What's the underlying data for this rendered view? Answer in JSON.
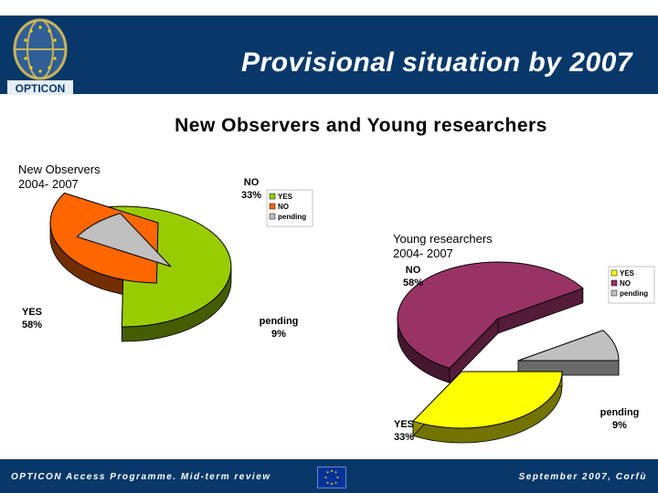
{
  "header": {
    "logo_text": "OPTICON",
    "title": "Provisional situation by 2007"
  },
  "subtitle": "New Observers and Young researchers",
  "footer": {
    "left": "OPTICON Access Programme. Mid-term review",
    "right": "September 2007, Corfù"
  },
  "colors": {
    "header_bg": "#08386a",
    "yes_green": "#99cc00",
    "no_orange": "#ff6600",
    "pending_grey": "#c0c0c0",
    "yes_yellow": "#ffff00",
    "no_purple": "#993366"
  },
  "chart_data": [
    {
      "type": "pie",
      "title": "New Observers\n2004- 2007",
      "legend_position": "top-right",
      "slices": [
        {
          "label": "YES",
          "value": 58,
          "value_text": "58%",
          "color": "#99cc00"
        },
        {
          "label": "NO",
          "value": 33,
          "value_text": "33%",
          "color": "#ff6600"
        },
        {
          "label": "pending",
          "value": 9,
          "value_text": "9%",
          "color": "#c0c0c0"
        }
      ],
      "legend": [
        "YES",
        "NO",
        "pending"
      ]
    },
    {
      "type": "pie",
      "title": "Young researchers\n2004- 2007",
      "legend_position": "top-right",
      "slices": [
        {
          "label": "YES",
          "value": 33,
          "value_text": "33%",
          "color": "#ffff00"
        },
        {
          "label": "NO",
          "value": 58,
          "value_text": "58%",
          "color": "#993366"
        },
        {
          "label": "pending",
          "value": 9,
          "value_text": "9%",
          "color": "#c0c0c0"
        }
      ],
      "legend": [
        "YES",
        "NO",
        "pending"
      ]
    }
  ]
}
